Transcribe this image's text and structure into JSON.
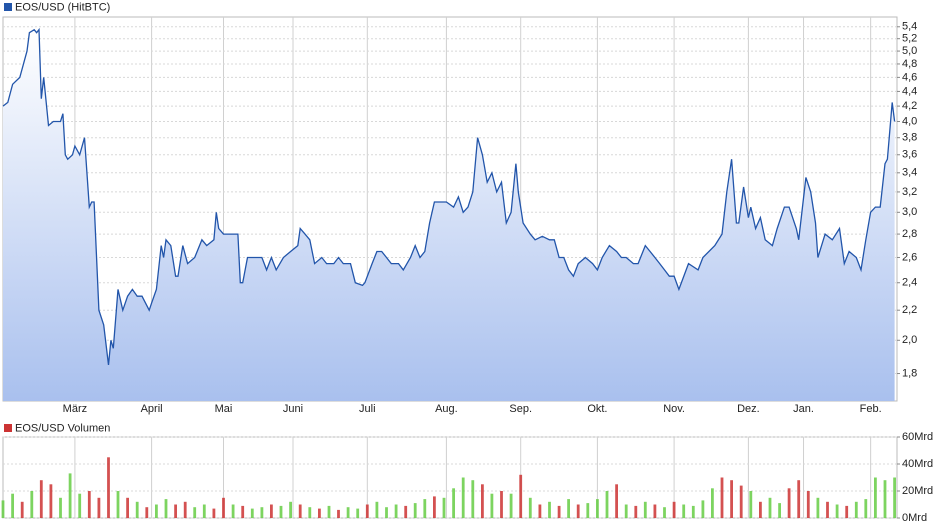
{
  "chart_data": [
    {
      "type": "line",
      "title": "EOS/USD (HitBTC)",
      "color": "#2255aa",
      "log_scale": true,
      "grid": true,
      "x": [
        0,
        2,
        4,
        7,
        10,
        11,
        13,
        14,
        15,
        16,
        17,
        19,
        21,
        24,
        25,
        26,
        27,
        29,
        30,
        32,
        34,
        36,
        37,
        38,
        40,
        42,
        44,
        45,
        46,
        48,
        50,
        52,
        54,
        56,
        58,
        61,
        62,
        64,
        66,
        67,
        68,
        70,
        72,
        73,
        75,
        77,
        80,
        83,
        85,
        88,
        89,
        90,
        92,
        95,
        98,
        99,
        100,
        102,
        105,
        108,
        110,
        112,
        114,
        117,
        120,
        123,
        124,
        126,
        128,
        130,
        133,
        135,
        138,
        140,
        142,
        145,
        147,
        150,
        151,
        154,
        156,
        158,
        160,
        162,
        165,
        167,
        170,
        172,
        174,
        176,
        178,
        180,
        182,
        185,
        188,
        190,
        192,
        194,
        196,
        198,
        200,
        202,
        204,
        206,
        208,
        210,
        212,
        214,
        215,
        217,
        220,
        222,
        225,
        228,
        230,
        232,
        234,
        236,
        238,
        240,
        243,
        246,
        248,
        250,
        253,
        256,
        258,
        260,
        263,
        265,
        268,
        270,
        272,
        274,
        276,
        278,
        280,
        282,
        286,
        290,
        292,
        297,
        300,
        302,
        304,
        306,
        307,
        309,
        311,
        312,
        314,
        316,
        318,
        321,
        323,
        326,
        328,
        331,
        332,
        335,
        337,
        339,
        340,
        343,
        346,
        349,
        351,
        353,
        356,
        358,
        360,
        362,
        364,
        366,
        368,
        369,
        371,
        372
      ],
      "values": [
        4.2,
        4.25,
        4.5,
        4.6,
        5.0,
        5.3,
        5.35,
        5.3,
        5.35,
        4.3,
        4.6,
        3.95,
        4.0,
        4.0,
        4.1,
        3.6,
        3.55,
        3.6,
        3.7,
        3.6,
        3.8,
        3.05,
        3.1,
        3.1,
        2.2,
        2.1,
        1.85,
        2.0,
        1.95,
        2.35,
        2.2,
        2.3,
        2.35,
        2.3,
        2.3,
        2.2,
        2.25,
        2.35,
        2.7,
        2.6,
        2.75,
        2.7,
        2.45,
        2.45,
        2.7,
        2.55,
        2.6,
        2.75,
        2.7,
        2.75,
        3.0,
        2.85,
        2.8,
        2.8,
        2.8,
        2.4,
        2.4,
        2.6,
        2.6,
        2.6,
        2.5,
        2.6,
        2.5,
        2.6,
        2.65,
        2.7,
        2.85,
        2.8,
        2.75,
        2.55,
        2.6,
        2.55,
        2.55,
        2.6,
        2.55,
        2.55,
        2.4,
        2.38,
        2.4,
        2.55,
        2.65,
        2.65,
        2.6,
        2.55,
        2.55,
        2.5,
        2.6,
        2.7,
        2.6,
        2.65,
        2.9,
        3.1,
        3.1,
        3.1,
        3.05,
        3.15,
        3.0,
        3.05,
        3.2,
        3.8,
        3.6,
        3.3,
        3.4,
        3.2,
        3.3,
        2.9,
        3.0,
        3.5,
        3.2,
        2.9,
        2.8,
        2.75,
        2.78,
        2.75,
        2.75,
        2.6,
        2.6,
        2.5,
        2.45,
        2.55,
        2.6,
        2.55,
        2.5,
        2.6,
        2.7,
        2.65,
        2.6,
        2.6,
        2.55,
        2.55,
        2.7,
        2.65,
        2.6,
        2.55,
        2.5,
        2.45,
        2.45,
        2.35,
        2.55,
        2.5,
        2.6,
        2.7,
        2.8,
        3.2,
        3.55,
        2.9,
        2.9,
        3.25,
        2.95,
        3.05,
        2.85,
        2.95,
        2.75,
        2.7,
        2.85,
        3.05,
        3.05,
        2.85,
        2.75,
        3.35,
        3.2,
        2.9,
        2.6,
        2.8,
        2.75,
        2.85,
        2.55,
        2.65,
        2.6,
        2.5,
        2.75,
        3.0,
        3.05,
        3.05,
        3.5,
        3.55,
        4.25,
        4.0
      ],
      "xlim": [
        0,
        373
      ],
      "xticks": [
        {
          "value": 30,
          "label": "März"
        },
        {
          "value": 62,
          "label": "April"
        },
        {
          "value": 92,
          "label": "Mai"
        },
        {
          "value": 121,
          "label": "Juni"
        },
        {
          "value": 152,
          "label": "Juli"
        },
        {
          "value": 185,
          "label": "Aug."
        },
        {
          "value": 216,
          "label": "Sep."
        },
        {
          "value": 248,
          "label": "Okt."
        },
        {
          "value": 280,
          "label": "Nov."
        },
        {
          "value": 311,
          "label": "Dez."
        },
        {
          "value": 334,
          "label": "Jan."
        },
        {
          "value": 362,
          "label": "Feb."
        }
      ],
      "ylim": [
        1.65,
        5.57
      ],
      "yticks": [
        {
          "value": 1.8,
          "label": "1,8"
        },
        {
          "value": 2.0,
          "label": "2,0"
        },
        {
          "value": 2.2,
          "label": "2,2"
        },
        {
          "value": 2.4,
          "label": "2,4"
        },
        {
          "value": 2.6,
          "label": "2,6"
        },
        {
          "value": 2.8,
          "label": "2,8"
        },
        {
          "value": 3.0,
          "label": "3,0"
        },
        {
          "value": 3.2,
          "label": "3,2"
        },
        {
          "value": 3.4,
          "label": "3,4"
        },
        {
          "value": 3.6,
          "label": "3,6"
        },
        {
          "value": 3.8,
          "label": "3,8"
        },
        {
          "value": 4.0,
          "label": "4,0"
        },
        {
          "value": 4.2,
          "label": "4,2"
        },
        {
          "value": 4.4,
          "label": "4,4"
        },
        {
          "value": 4.6,
          "label": "4,6"
        },
        {
          "value": 4.8,
          "label": "4,8"
        },
        {
          "value": 5.0,
          "label": "5,0"
        },
        {
          "value": 5.2,
          "label": "5,2"
        },
        {
          "value": 5.4,
          "label": "5,4"
        }
      ]
    },
    {
      "type": "bar",
      "title": "EOS/USD Volumen",
      "color": "#cc3333",
      "grid": true,
      "x": [
        0,
        4,
        8,
        12,
        16,
        20,
        24,
        28,
        32,
        36,
        40,
        44,
        48,
        52,
        56,
        60,
        64,
        68,
        72,
        76,
        80,
        84,
        88,
        92,
        96,
        100,
        104,
        108,
        112,
        116,
        120,
        124,
        128,
        132,
        136,
        140,
        144,
        148,
        152,
        156,
        160,
        164,
        168,
        172,
        176,
        180,
        184,
        188,
        192,
        196,
        200,
        204,
        208,
        212,
        216,
        220,
        224,
        228,
        232,
        236,
        240,
        244,
        248,
        252,
        256,
        260,
        264,
        268,
        272,
        276,
        280,
        284,
        288,
        292,
        296,
        300,
        304,
        308,
        312,
        316,
        320,
        324,
        328,
        332,
        336,
        340,
        344,
        348,
        352,
        356,
        360,
        364,
        368,
        372
      ],
      "values": [
        13,
        18,
        12,
        20,
        28,
        25,
        15,
        33,
        18,
        20,
        15,
        45,
        20,
        15,
        12,
        8,
        10,
        14,
        10,
        12,
        8,
        10,
        7,
        15,
        10,
        9,
        7,
        8,
        10,
        9,
        12,
        10,
        8,
        7,
        9,
        6,
        8,
        7,
        10,
        12,
        8,
        10,
        9,
        11,
        14,
        16,
        15,
        22,
        30,
        28,
        25,
        18,
        20,
        18,
        32,
        15,
        10,
        12,
        9,
        14,
        10,
        11,
        14,
        20,
        25,
        10,
        9,
        12,
        10,
        8,
        12,
        10,
        9,
        13,
        22,
        30,
        28,
        24,
        20,
        12,
        15,
        11,
        22,
        28,
        20,
        15,
        12,
        10,
        9,
        12,
        14,
        30,
        28,
        30
      ],
      "bar_colors": [
        "#66cc44",
        "#66cc44",
        "#cc3333",
        "#66cc44",
        "#cc3333",
        "#cc3333",
        "#66cc44",
        "#66cc44",
        "#66cc44",
        "#cc3333",
        "#cc3333",
        "#cc3333",
        "#66cc44",
        "#cc3333",
        "#66cc44",
        "#cc3333",
        "#66cc44",
        "#66cc44",
        "#cc3333",
        "#cc3333",
        "#66cc44",
        "#66cc44",
        "#cc3333",
        "#cc3333",
        "#66cc44",
        "#cc3333",
        "#66cc44",
        "#66cc44",
        "#cc3333",
        "#66cc44",
        "#66cc44",
        "#cc3333",
        "#66cc44",
        "#cc3333",
        "#66cc44",
        "#cc3333",
        "#66cc44",
        "#66cc44",
        "#cc3333",
        "#66cc44",
        "#66cc44",
        "#66cc44",
        "#cc3333",
        "#66cc44",
        "#66cc44",
        "#cc3333",
        "#66cc44",
        "#66cc44",
        "#66cc44",
        "#66cc44",
        "#cc3333",
        "#66cc44",
        "#cc3333",
        "#66cc44",
        "#cc3333",
        "#66cc44",
        "#cc3333",
        "#66cc44",
        "#cc3333",
        "#66cc44",
        "#cc3333",
        "#66cc44",
        "#66cc44",
        "#66cc44",
        "#cc3333",
        "#66cc44",
        "#cc3333",
        "#66cc44",
        "#cc3333",
        "#66cc44",
        "#cc3333",
        "#66cc44",
        "#66cc44",
        "#66cc44",
        "#66cc44",
        "#cc3333",
        "#cc3333",
        "#cc3333",
        "#66cc44",
        "#cc3333",
        "#66cc44",
        "#66cc44",
        "#cc3333",
        "#cc3333",
        "#cc3333",
        "#66cc44",
        "#cc3333",
        "#66cc44",
        "#cc3333",
        "#66cc44",
        "#66cc44",
        "#66cc44",
        "#66cc44",
        "#66cc44"
      ],
      "xlim": [
        0,
        373
      ],
      "ylim": [
        0,
        60
      ],
      "yticks": [
        {
          "value": 0,
          "label": "0Mrd"
        },
        {
          "value": 20,
          "label": "20Mrd"
        },
        {
          "value": 40,
          "label": "40Mrd"
        },
        {
          "value": 60,
          "label": "60Mrd"
        }
      ]
    }
  ]
}
